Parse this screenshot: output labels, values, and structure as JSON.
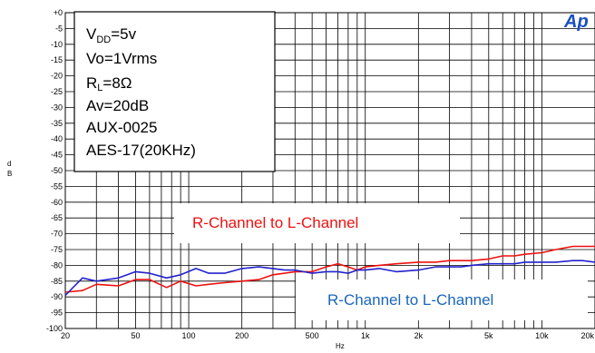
{
  "chart_data": {
    "type": "line",
    "xscale": "log",
    "xlim": [
      20,
      20000
    ],
    "ylim": [
      -100,
      0
    ],
    "xlabel": "Hz",
    "ylabel": "d B",
    "grid": true,
    "xticks": [
      {
        "v": 20,
        "label": "20"
      },
      {
        "v": 50,
        "label": "50"
      },
      {
        "v": 100,
        "label": "100"
      },
      {
        "v": 200,
        "label": "200"
      },
      {
        "v": 500,
        "label": "500"
      },
      {
        "v": 1000,
        "label": "1k"
      },
      {
        "v": 2000,
        "label": "2k"
      },
      {
        "v": 5000,
        "label": "5k"
      },
      {
        "v": 10000,
        "label": "10k"
      },
      {
        "v": 20000,
        "label": "20k"
      }
    ],
    "yticks": [
      {
        "v": 0,
        "label": "+0"
      },
      {
        "v": -5,
        "label": "-5"
      },
      {
        "v": -10,
        "label": "-10"
      },
      {
        "v": -15,
        "label": "-15"
      },
      {
        "v": -20,
        "label": "-20"
      },
      {
        "v": -25,
        "label": "-25"
      },
      {
        "v": -30,
        "label": "-30"
      },
      {
        "v": -35,
        "label": "-35"
      },
      {
        "v": -40,
        "label": "-40"
      },
      {
        "v": -45,
        "label": "-45"
      },
      {
        "v": -50,
        "label": "-50"
      },
      {
        "v": -55,
        "label": "-55"
      },
      {
        "v": -60,
        "label": "-60"
      },
      {
        "v": -65,
        "label": "-65"
      },
      {
        "v": -70,
        "label": "-70"
      },
      {
        "v": -75,
        "label": "-75"
      },
      {
        "v": -80,
        "label": "-80"
      },
      {
        "v": -85,
        "label": "-85"
      },
      {
        "v": -90,
        "label": "-90"
      },
      {
        "v": -95,
        "label": "-95"
      },
      {
        "v": -100,
        "label": "-100"
      }
    ],
    "conditions": [
      "VDD=5v",
      "Vo=1Vrms",
      "RL=8Ω",
      "Av=20dB",
      "AUX-0025",
      "AES-17(20KHz)"
    ],
    "logo_text": "Ap",
    "series": [
      {
        "name": "R-Channel to L-Channel",
        "color": "#ee1111",
        "x": [
          20,
          25,
          30,
          40,
          50,
          60,
          75,
          90,
          110,
          130,
          160,
          200,
          250,
          300,
          350,
          400,
          500,
          600,
          700,
          800,
          900,
          1000,
          1200,
          1500,
          2000,
          2500,
          3000,
          3500,
          4000,
          5000,
          6000,
          7000,
          8000,
          10000,
          12000,
          15000,
          17000,
          20000
        ],
        "y": [
          -88.5,
          -88,
          -86,
          -86.5,
          -84.5,
          -84.5,
          -87,
          -85,
          -86.5,
          -86,
          -85.5,
          -85,
          -84.5,
          -83,
          -82.5,
          -82,
          -82,
          -80.5,
          -79.5,
          -80.5,
          -81.5,
          -80.5,
          -80,
          -79.5,
          -79,
          -79,
          -78.5,
          -78.5,
          -78.5,
          -78,
          -77,
          -77,
          -76.5,
          -76,
          -75,
          -74,
          -74,
          -74
        ]
      },
      {
        "name": "R-Channel to L-Channel",
        "color": "#2222cc",
        "x": [
          20,
          25,
          30,
          40,
          50,
          60,
          75,
          90,
          110,
          130,
          160,
          200,
          250,
          300,
          350,
          400,
          500,
          600,
          700,
          800,
          900,
          1000,
          1200,
          1500,
          2000,
          2500,
          3000,
          3500,
          4000,
          5000,
          6000,
          7000,
          8000,
          10000,
          12000,
          15000,
          17000,
          20000
        ],
        "y": [
          -89.5,
          -84,
          -85,
          -84,
          -82,
          -82.5,
          -84,
          -83,
          -81,
          -82.5,
          -82.5,
          -81,
          -80.5,
          -81,
          -81.5,
          -81.5,
          -82.5,
          -82,
          -82,
          -82.5,
          -81.5,
          -81.5,
          -81,
          -82,
          -81.5,
          -80.5,
          -80.5,
          -80.5,
          -80,
          -79.5,
          -79.5,
          -79.5,
          -79,
          -79,
          -79,
          -78.5,
          -78.5,
          -79
        ]
      }
    ],
    "annotations": [
      {
        "text": "R-Channel to L-Channel",
        "color": "#ee1111"
      },
      {
        "text": "R-Channel to L-Channel",
        "color": "#1a66bb"
      }
    ]
  }
}
